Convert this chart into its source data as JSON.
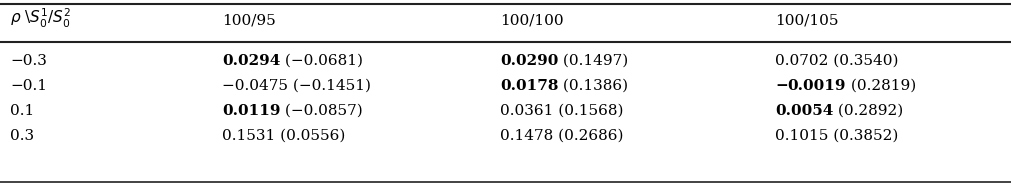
{
  "col_header": [
    "ρ \\S₀¹/S₀²",
    "100/95",
    "100/100",
    "100/105"
  ],
  "rows": [
    {
      "rho": "−0.3",
      "cells": [
        [
          {
            "text": "0.0294",
            "bold": true
          },
          {
            "text": " (−0.0681)",
            "bold": false
          }
        ],
        [
          {
            "text": "0.0290",
            "bold": true
          },
          {
            "text": " (0.1497)",
            "bold": false
          }
        ],
        [
          {
            "text": "0.0702 (0.3540)",
            "bold": false
          }
        ]
      ]
    },
    {
      "rho": "−0.1",
      "cells": [
        [
          {
            "text": "−0.0475 (−0.1451)",
            "bold": false
          }
        ],
        [
          {
            "text": "0.0178",
            "bold": true
          },
          {
            "text": " (0.1386)",
            "bold": false
          }
        ],
        [
          {
            "text": "−",
            "bold": true
          },
          {
            "text": "0.0019",
            "bold": true
          },
          {
            "text": " (0.2819)",
            "bold": false
          }
        ]
      ]
    },
    {
      "rho": "0.1",
      "cells": [
        [
          {
            "text": "0.0119",
            "bold": true
          },
          {
            "text": " (−0.0857)",
            "bold": false
          }
        ],
        [
          {
            "text": "0.0361 (0.1568)",
            "bold": false
          }
        ],
        [
          {
            "text": "0.0054",
            "bold": true
          },
          {
            "text": " (0.2892)",
            "bold": false
          }
        ]
      ]
    },
    {
      "rho": "0.3",
      "cells": [
        [
          {
            "text": "0.1531 (0.0556)",
            "bold": false
          }
        ],
        [
          {
            "text": "0.1478 (0.2686)",
            "bold": false
          }
        ],
        [
          {
            "text": "0.1015 (0.3852)",
            "bold": false
          }
        ]
      ]
    }
  ],
  "figsize": [
    10.12,
    1.88
  ],
  "dpi": 100,
  "fontsize": 11.0,
  "bg_color": "#ffffff",
  "text_color": "#000000",
  "line_color": "#222222"
}
